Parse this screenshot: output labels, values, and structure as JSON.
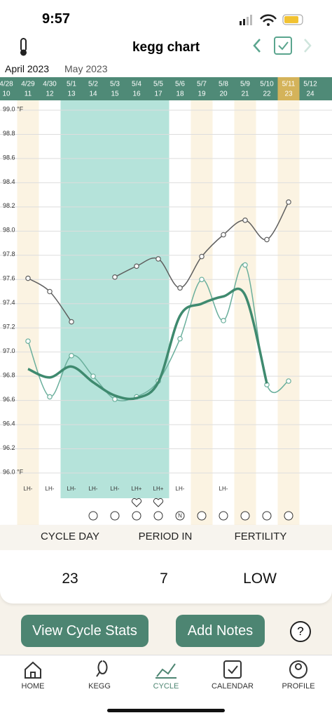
{
  "status_bar": {
    "time": "9:57"
  },
  "header": {
    "title": "kegg chart",
    "months": [
      "April 2023",
      "May 2023"
    ]
  },
  "chart_data": {
    "type": "line",
    "categories": [
      "4/28",
      "4/29",
      "4/30",
      "5/1",
      "5/2",
      "5/3",
      "5/4",
      "5/5",
      "5/6",
      "5/7",
      "5/8",
      "5/9",
      "5/10",
      "5/11",
      "5/12"
    ],
    "cycle_days": [
      "10",
      "11",
      "12",
      "13",
      "14",
      "15",
      "16",
      "17",
      "18",
      "19",
      "20",
      "21",
      "22",
      "23",
      "24"
    ],
    "ylim": [
      96.0,
      99.0
    ],
    "yticks": [
      {
        "value": 99,
        "label": "99.0 °F"
      },
      98.8,
      98.6,
      98.4,
      98.2,
      {
        "value": 98,
        "label": "98.0"
      },
      97.8,
      97.6,
      97.4,
      97.2,
      {
        "value": 97,
        "label": "97.0"
      },
      96.8,
      96.6,
      96.4,
      96.2,
      {
        "value": 96,
        "label": "96.0 °F"
      }
    ],
    "grid": true,
    "series": [
      {
        "color": "#5f5f5f",
        "values": [
          null,
          97.61,
          97.5,
          97.25,
          null,
          97.62,
          97.71,
          97.77,
          97.53,
          97.79,
          97.97,
          98.09,
          97.93,
          98.24,
          null
        ]
      },
      {
        "color": "#6aaf9c",
        "values": [
          null,
          97.09,
          96.63,
          96.97,
          96.8,
          96.61,
          96.63,
          96.76,
          97.11,
          97.6,
          97.26,
          97.72,
          96.73,
          96.76,
          null
        ]
      },
      {
        "color": "#3f8a6f",
        "values": [
          null,
          96.86,
          96.79,
          96.88,
          96.75,
          96.64,
          96.62,
          96.75,
          97.3,
          97.4,
          97.46,
          97.47,
          96.74,
          null,
          null
        ]
      }
    ],
    "lh_labels": [
      null,
      "LH-",
      "LH-",
      "LH-",
      "LH-",
      "LH-",
      "LH+",
      "LH+",
      "LH-",
      null,
      "LH-",
      null,
      null,
      null,
      null
    ],
    "mucus_labels": [
      {
        "index": 8,
        "label": "N"
      }
    ]
  },
  "stats": {
    "labels": [
      "CYCLE DAY",
      "PERIOD IN",
      "FERTILITY"
    ],
    "values": [
      "23",
      "7",
      "LOW"
    ]
  },
  "buttons": [
    "View Cycle Stats",
    "Add Notes",
    "?"
  ],
  "nav": [
    "HOME",
    "KEGG",
    "CYCLE",
    "CALENDAR",
    "PROFILE"
  ]
}
